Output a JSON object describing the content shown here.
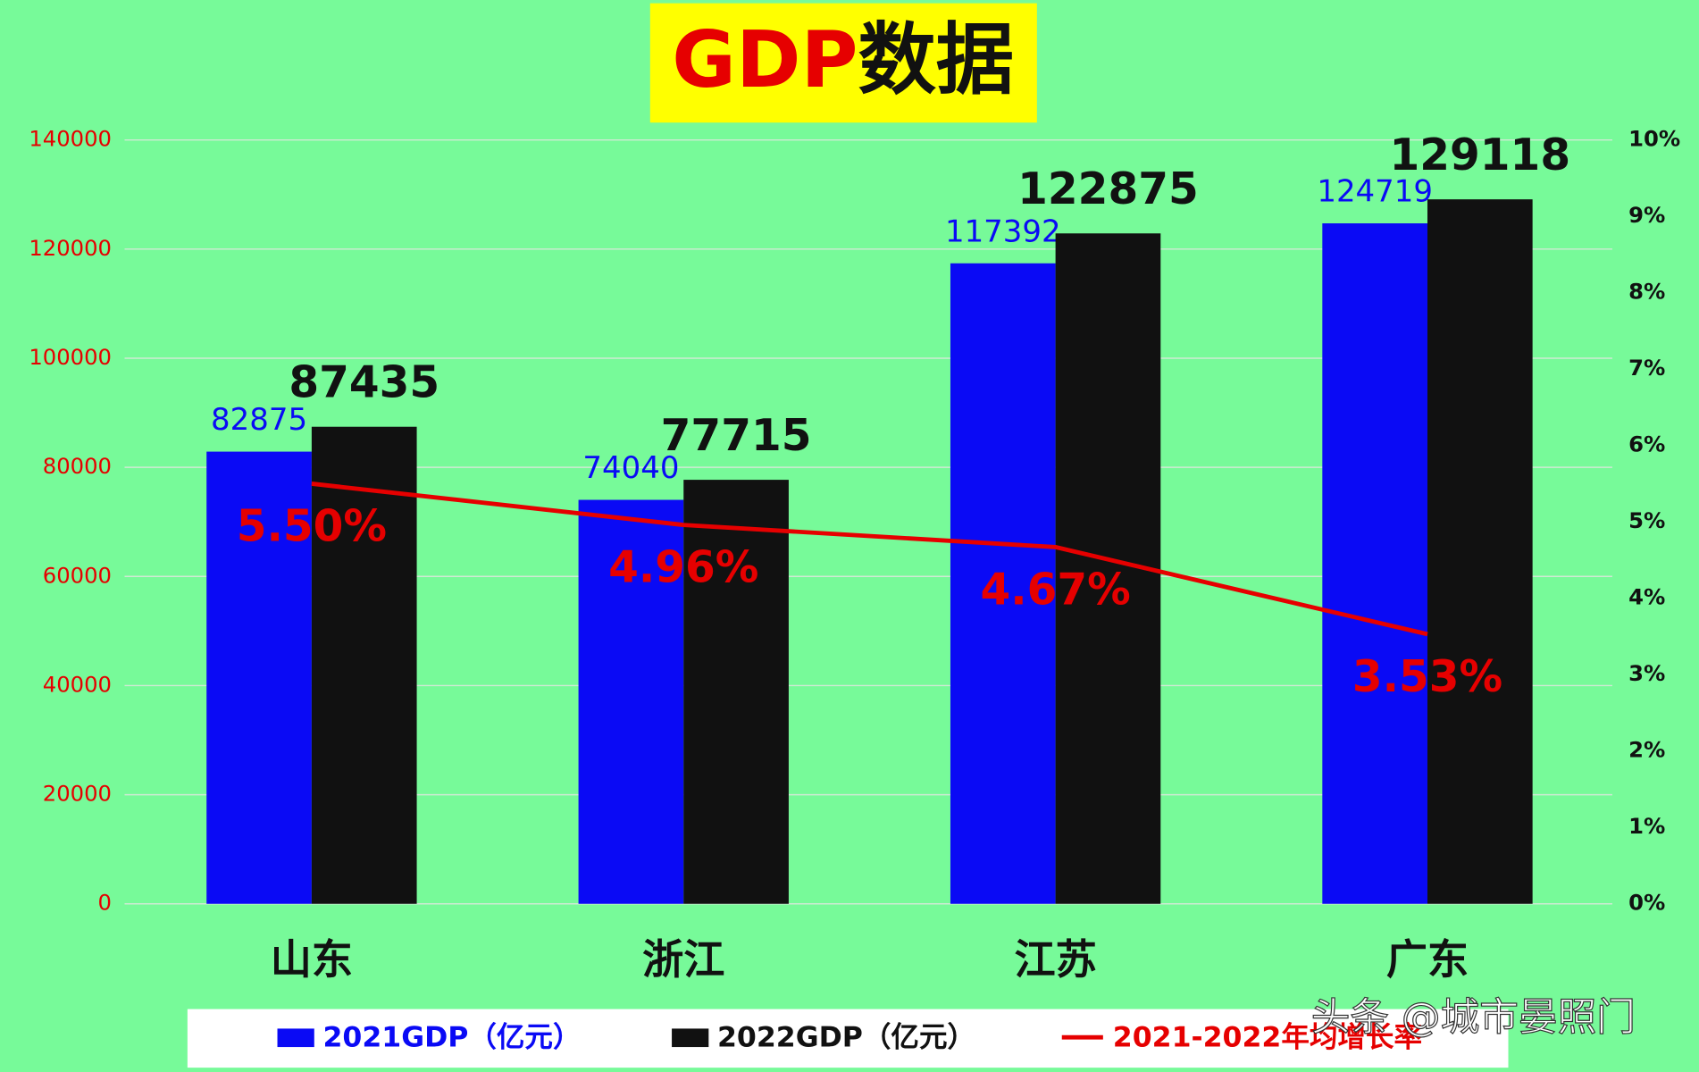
{
  "chart_data": {
    "type": "bar",
    "title": "GDP数据",
    "categories": [
      "山东",
      "浙江",
      "江苏",
      "广东"
    ],
    "series": [
      {
        "name": "2021GDP（亿元）",
        "color": "#0a0af5",
        "values": [
          82875,
          74040,
          117392,
          124719
        ]
      },
      {
        "name": "2022GDP（亿元）",
        "color": "#111111",
        "values": [
          87435,
          77715,
          122875,
          129118
        ]
      },
      {
        "name": "2021-2022年均增长率",
        "type": "line",
        "axis": "y2",
        "color": "#e60000",
        "values": [
          5.5,
          4.96,
          4.67,
          3.53
        ],
        "value_labels": [
          "5.50%",
          "4.96%",
          "4.67%",
          "3.53%"
        ]
      }
    ],
    "ylim": [
      0,
      140000
    ],
    "yticks": [
      0,
      20000,
      40000,
      60000,
      80000,
      100000,
      120000,
      140000
    ],
    "y2lim": [
      0,
      10
    ],
    "y2ticks": [
      {
        "value": 0,
        "label": "0%"
      },
      {
        "value": 1,
        "label": "1%"
      },
      {
        "value": 2,
        "label": "2%"
      },
      {
        "value": 3,
        "label": "3%"
      },
      {
        "value": 4,
        "label": "4%"
      },
      {
        "value": 5,
        "label": "5%"
      },
      {
        "value": 6,
        "label": "6%"
      },
      {
        "value": 7,
        "label": "7%"
      },
      {
        "value": 8,
        "label": "8%"
      },
      {
        "value": 9,
        "label": "9%"
      },
      {
        "value": 10,
        "label": "10%"
      }
    ],
    "grid": true,
    "legend": "bottom",
    "watermark": "头条 @城市晏照门"
  }
}
